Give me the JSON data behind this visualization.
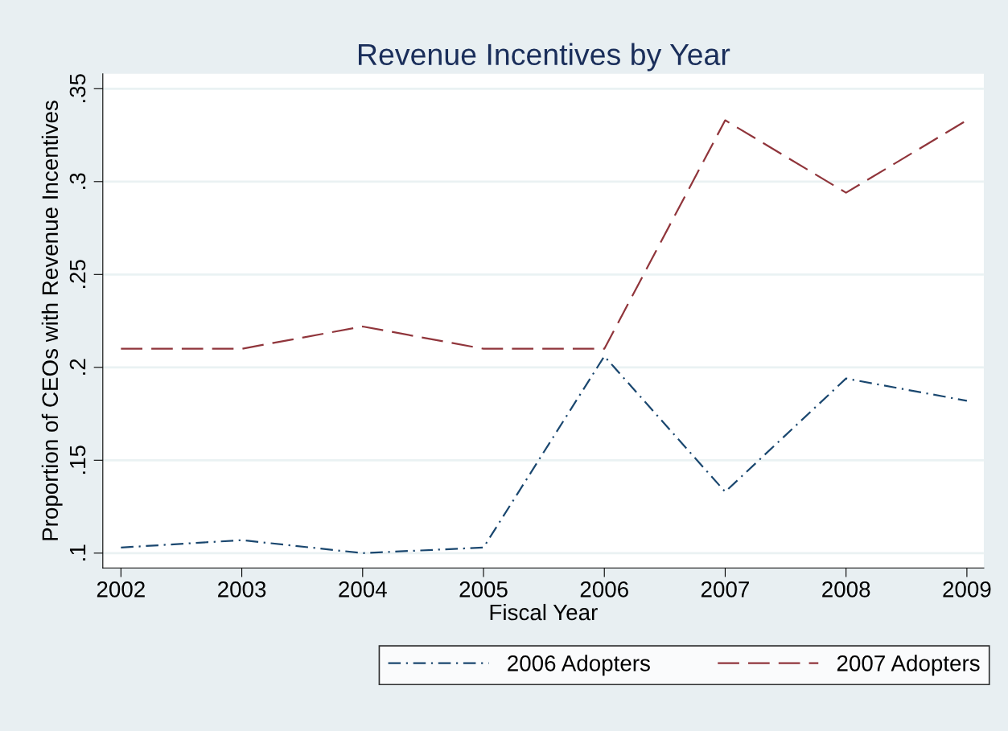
{
  "chart_data": {
    "type": "line",
    "title": "Revenue Incentives by Year",
    "xlabel": "Fiscal Year",
    "ylabel": "Proportion of CEOs with Revenue Incentives",
    "x": [
      2002,
      2003,
      2004,
      2005,
      2006,
      2007,
      2008,
      2009
    ],
    "series": [
      {
        "name": "2006 Adopters",
        "color": "#1a476f",
        "line_style": "dashdot",
        "values": [
          0.103,
          0.107,
          0.1,
          0.103,
          0.206,
          0.133,
          0.194,
          0.182
        ]
      },
      {
        "name": "2007 Adopters",
        "color": "#90353b",
        "line_style": "dashed",
        "values": [
          0.21,
          0.21,
          0.222,
          0.21,
          0.21,
          0.333,
          0.294,
          0.333
        ]
      }
    ],
    "xlim": [
      2001.85,
      2009.14
    ],
    "xticks": [
      2002,
      2003,
      2004,
      2005,
      2006,
      2007,
      2008,
      2009
    ],
    "ylim": [
      0.092,
      0.358
    ],
    "yticks": [
      {
        "value": 0.1,
        "label": ".1"
      },
      {
        "value": 0.15,
        "label": ".15"
      },
      {
        "value": 0.2,
        "label": ".2"
      },
      {
        "value": 0.25,
        "label": ".25"
      },
      {
        "value": 0.3,
        "label": ".3"
      },
      {
        "value": 0.35,
        "label": ".35"
      }
    ],
    "grid": "y",
    "legend": "bottom",
    "marker": "none"
  }
}
